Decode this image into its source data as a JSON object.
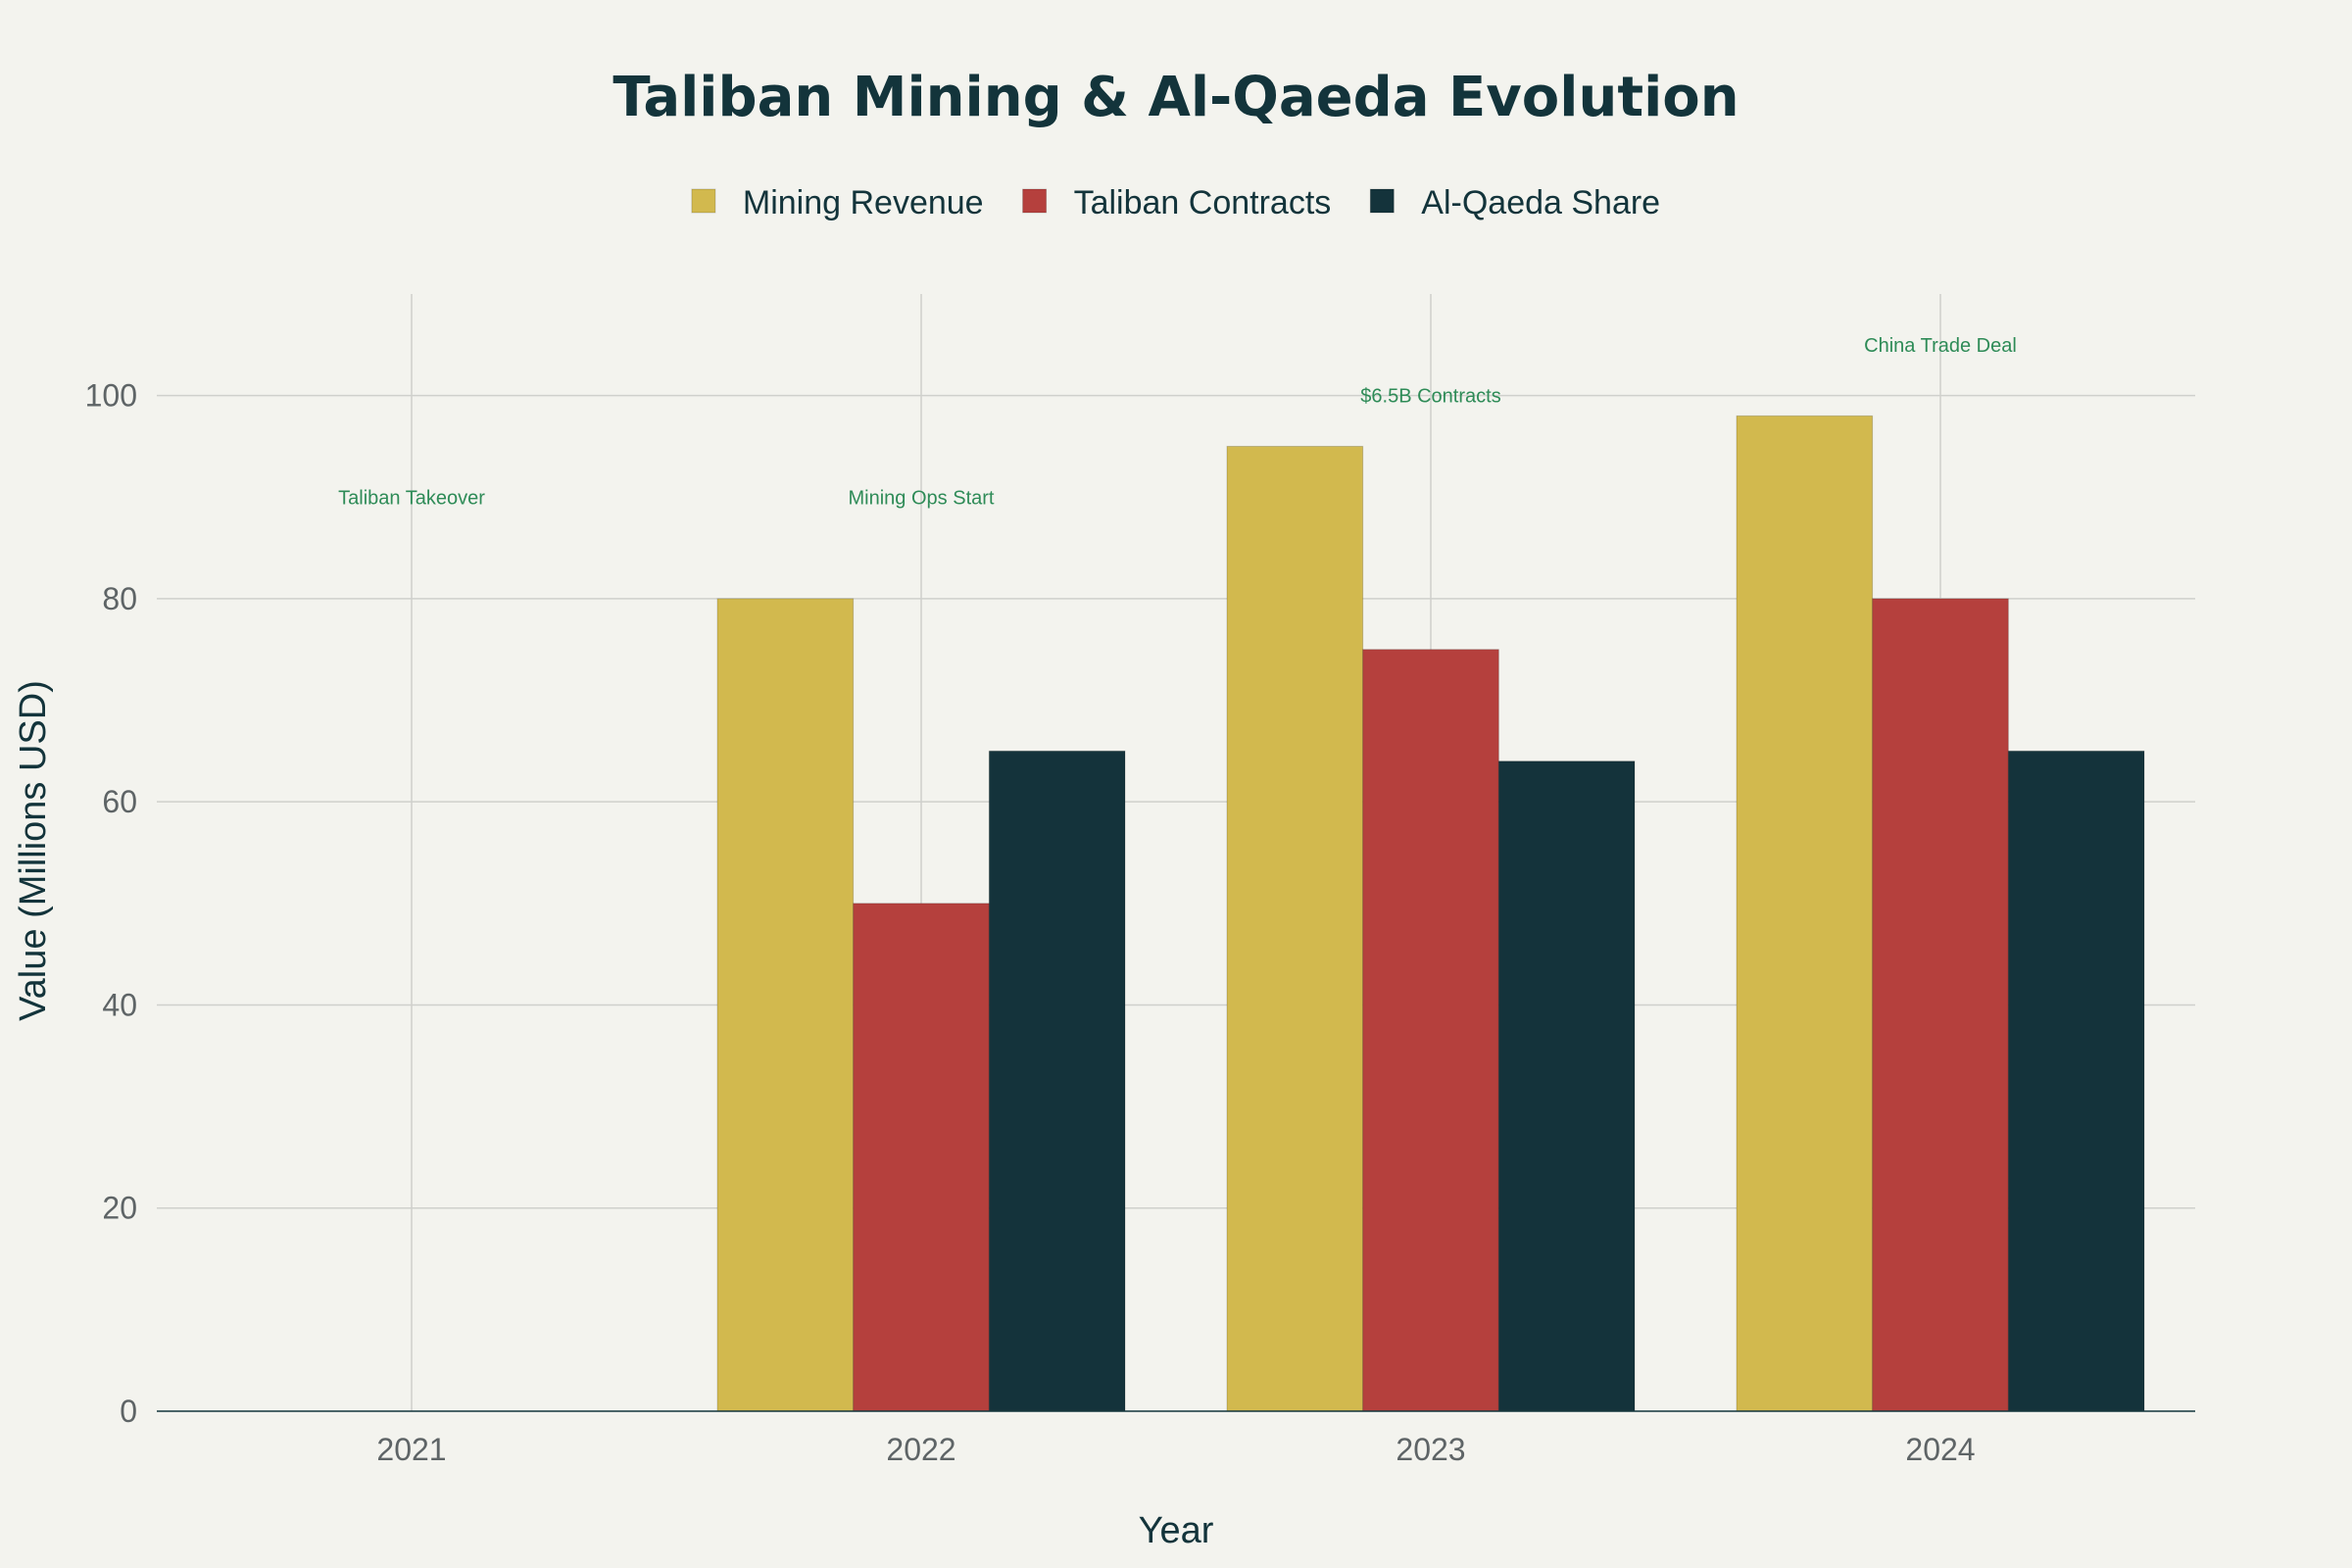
{
  "chart_data": {
    "type": "bar",
    "title": "Taliban Mining & Al-Qaeda Evolution",
    "xlabel": "Year",
    "ylabel": "Value (Millions USD)",
    "categories": [
      "2021",
      "2022",
      "2023",
      "2024"
    ],
    "series": [
      {
        "name": "Mining Revenue",
        "color": "#d2b94e",
        "values": [
          0,
          80,
          95,
          98
        ]
      },
      {
        "name": "Taliban Contracts",
        "color": "#b5403d",
        "values": [
          0,
          50,
          75,
          80
        ]
      },
      {
        "name": "Al-Qaeda Share",
        "color": "#14333b",
        "values": [
          0,
          65,
          64,
          65
        ]
      }
    ],
    "ylim": [
      0,
      110
    ],
    "yticks": [
      0,
      20,
      40,
      60,
      80,
      100
    ],
    "grid": true,
    "legend": "top-center",
    "annotations": [
      {
        "category": "2021",
        "y": 90,
        "text": "Taliban Takeover"
      },
      {
        "category": "2022",
        "y": 90,
        "text": "Mining Ops Start"
      },
      {
        "category": "2023",
        "y": 100,
        "text": "$6.5B Contracts"
      },
      {
        "category": "2024",
        "y": 105,
        "text": "China Trade Deal"
      }
    ]
  }
}
